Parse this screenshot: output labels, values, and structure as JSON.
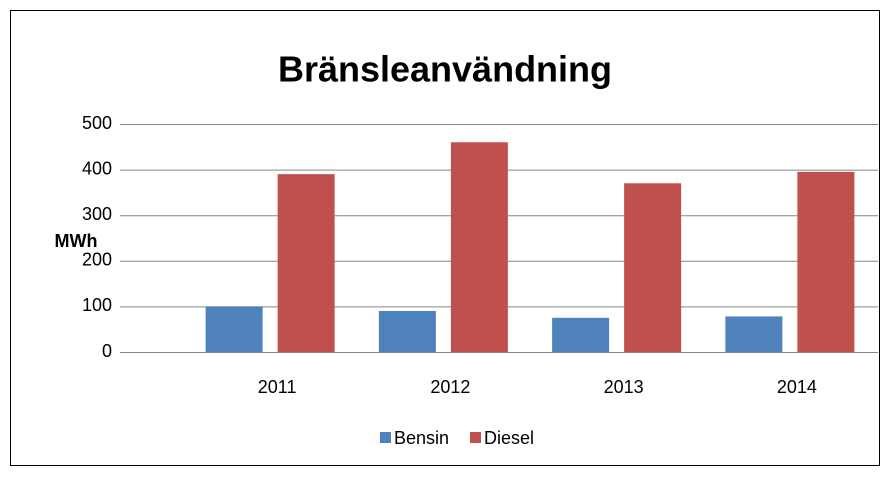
{
  "chart_data": {
    "type": "bar",
    "title": "Bränsleanvändning",
    "y_label": "MWh",
    "categories": [
      "2011",
      "2012",
      "2013",
      "2014"
    ],
    "series": [
      {
        "name": "Bensin",
        "color": "#4f81bd",
        "values": [
          100,
          90,
          75,
          78
        ]
      },
      {
        "name": "Diesel",
        "color": "#c0504d",
        "values": [
          390,
          460,
          370,
          395
        ]
      }
    ],
    "ylim": [
      0,
      500
    ],
    "yticks": [
      0,
      100,
      200,
      300,
      400,
      500
    ],
    "grid": true,
    "legend": "bottom"
  }
}
